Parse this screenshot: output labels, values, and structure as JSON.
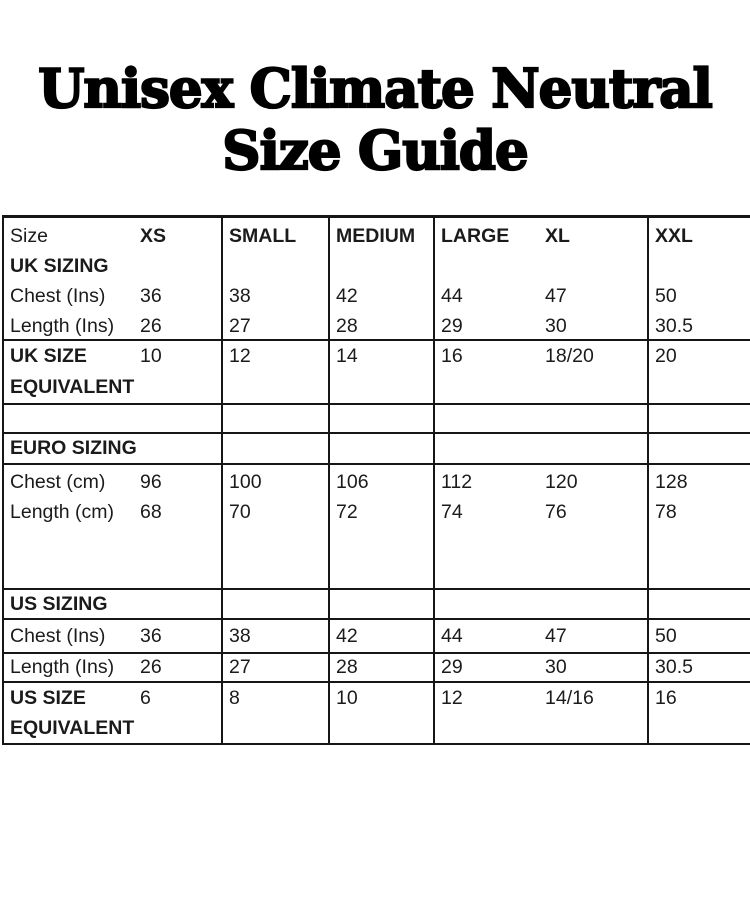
{
  "title": {
    "line1": "Unisex Climate Neutral",
    "line2": "Size Guide"
  },
  "header": {
    "size": "Size",
    "xs": "XS",
    "small": "SMALL",
    "medium": "MEDIUM",
    "large": "LARGE",
    "xl": "XL",
    "xxl": "XXL"
  },
  "uk": {
    "section": "UK SIZING",
    "chest": {
      "label": "Chest (Ins)",
      "xs": "36",
      "small": "38",
      "medium": "42",
      "large": "44",
      "xl": "47",
      "xxl": "50"
    },
    "length": {
      "label": "Length (Ins)",
      "xs": "26",
      "small": "27",
      "medium": "28",
      "large": "29",
      "xl": "30",
      "xxl": "30.5"
    },
    "equivalent": {
      "label1": "UK SIZE",
      "label2": "EQUIVALENT",
      "xs": "10",
      "small": "12",
      "medium": "14",
      "large": "16",
      "xl": "18/20",
      "xxl": "20"
    }
  },
  "euro": {
    "section": "EURO SIZING",
    "chest": {
      "label": "Chest (cm)",
      "xs": "96",
      "small": "100",
      "medium": "106",
      "large": "112",
      "xl": "120",
      "xxl": "128"
    },
    "length": {
      "label": "Length (cm)",
      "xs": "68",
      "small": "70",
      "medium": "72",
      "large": "74",
      "xl": "76",
      "xxl": "78"
    }
  },
  "us": {
    "section": "US SIZING",
    "chest": {
      "label": "Chest (Ins)",
      "xs": "36",
      "small": "38",
      "medium": "42",
      "large": "44",
      "xl": "47",
      "xxl": "50"
    },
    "length": {
      "label": "Length (Ins)",
      "xs": "26",
      "small": "27",
      "medium": "28",
      "large": "29",
      "xl": "30",
      "xxl": "30.5"
    },
    "equivalent": {
      "label1": "US SIZE",
      "label2": "EQUIVALENT",
      "xs": "6",
      "small": "8",
      "medium": "10",
      "large": "12",
      "xl": "14/16",
      "xxl": "16"
    }
  },
  "colors": {
    "border": "#161616",
    "text": "#1b1b1b",
    "background": "#ffffff"
  }
}
